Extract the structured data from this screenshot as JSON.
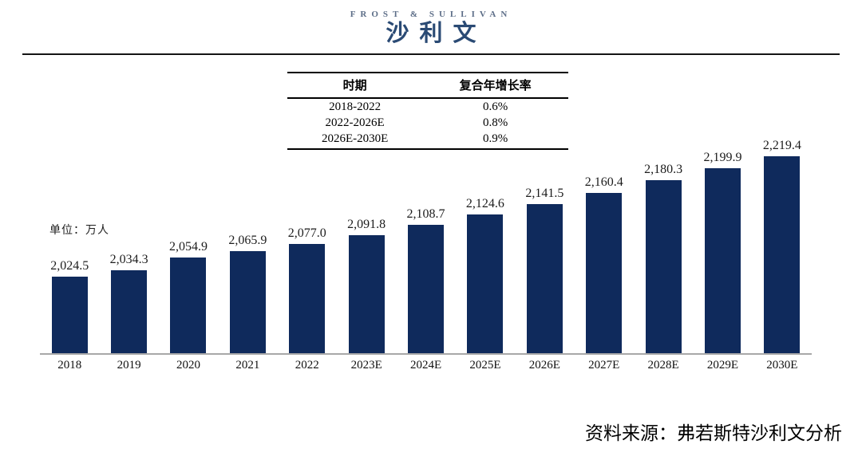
{
  "logo": {
    "english": "FROST & SULLIVAN",
    "chinese": "沙利文"
  },
  "cagr_table": {
    "headers": [
      "时期",
      "复合年增长率"
    ],
    "rows": [
      [
        "2018-2022",
        "0.6%"
      ],
      [
        "2022-2026E",
        "0.8%"
      ],
      [
        "2026E-2030E",
        "0.9%"
      ]
    ]
  },
  "unit_label": "单位：万人",
  "chart_data": {
    "type": "bar",
    "title": "",
    "xlabel": "",
    "ylabel": "万人",
    "categories": [
      "2018",
      "2019",
      "2020",
      "2021",
      "2022",
      "2023E",
      "2024E",
      "2025E",
      "2026E",
      "2027E",
      "2028E",
      "2029E",
      "2030E"
    ],
    "values": [
      2024.5,
      2034.3,
      2054.9,
      2065.9,
      2077.0,
      2091.8,
      2108.7,
      2124.6,
      2141.5,
      2160.4,
      2180.3,
      2199.9,
      2219.4
    ],
    "value_labels": [
      "2,024.5",
      "2,034.3",
      "2,054.9",
      "2,065.9",
      "2,077.0",
      "2,091.8",
      "2,108.7",
      "2,124.6",
      "2,141.5",
      "2,160.4",
      "2,180.3",
      "2,199.9",
      "2,219.4"
    ],
    "bar_color": "#0f2a5c",
    "ylim": [
      1900,
      2230
    ],
    "grid": false,
    "legend_position": "none"
  },
  "source_note": "资料来源：弗若斯特沙利文分析"
}
